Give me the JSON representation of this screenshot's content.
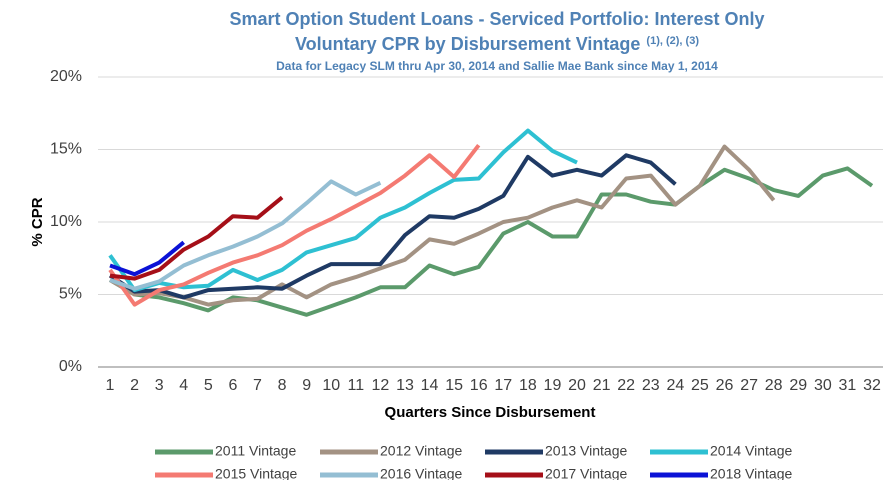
{
  "chart_data": {
    "type": "line",
    "title": "Smart Option Student Loans - Serviced Portfolio: Interest Only",
    "title_line2": "Voluntary CPR by Disbursement Vintage",
    "title_superscript": "(1), (2), (3)",
    "subtitle": "Data for Legacy SLM thru Apr 30, 2014 and Sallie Mae Bank since May 1, 2014",
    "y_label": "% CPR",
    "x_label": "Quarters Since Disbursement",
    "categories": [
      1,
      2,
      3,
      4,
      5,
      6,
      7,
      8,
      9,
      10,
      11,
      12,
      13,
      14,
      15,
      16,
      17,
      18,
      19,
      20,
      21,
      22,
      23,
      24,
      25,
      26,
      27,
      28,
      29,
      30,
      31,
      32
    ],
    "ylim": [
      0,
      20
    ],
    "yticks": [
      {
        "value": 0,
        "label": "0%"
      },
      {
        "value": 5,
        "label": "5%"
      },
      {
        "value": 10,
        "label": "10%"
      },
      {
        "value": 15,
        "label": "15%"
      },
      {
        "value": 20,
        "label": "20%"
      }
    ],
    "grid": true,
    "legend": "bottom",
    "series": [
      {
        "name": "2011 Vintage",
        "color": "#5b9a6b",
        "values": [
          6.0,
          5.0,
          4.8,
          4.4,
          3.9,
          4.8,
          4.6,
          4.1,
          3.6,
          4.2,
          4.8,
          5.5,
          5.5,
          7.0,
          6.4,
          6.9,
          9.2,
          10.0,
          9.0,
          9.0,
          11.9,
          11.9,
          11.4,
          11.2,
          12.5,
          13.6,
          13.0,
          12.2,
          11.8,
          13.2,
          13.7,
          12.5
        ]
      },
      {
        "name": "2012 Vintage",
        "color": "#a39283",
        "values": [
          6.0,
          5.0,
          5.1,
          4.8,
          4.3,
          4.6,
          4.7,
          5.7,
          4.8,
          5.7,
          6.2,
          6.8,
          7.4,
          8.8,
          8.5,
          9.2,
          10.0,
          10.3,
          11.0,
          11.5,
          11.0,
          13.0,
          13.2,
          11.2,
          12.5,
          15.2,
          13.6,
          11.5,
          null,
          null,
          null,
          null
        ]
      },
      {
        "name": "2013 Vintage",
        "color": "#1f3a64",
        "values": [
          6.3,
          5.2,
          5.3,
          4.8,
          5.3,
          5.4,
          5.5,
          5.4,
          6.3,
          7.1,
          7.1,
          7.1,
          9.1,
          10.4,
          10.3,
          10.9,
          11.8,
          14.5,
          13.2,
          13.6,
          13.2,
          14.6,
          14.1,
          12.6,
          null,
          null,
          null,
          null,
          null,
          null,
          null,
          null
        ]
      },
      {
        "name": "2014 Vintage",
        "color": "#2ec0d2",
        "values": [
          7.7,
          5.3,
          5.8,
          5.5,
          5.6,
          6.7,
          6.0,
          6.7,
          7.9,
          8.4,
          8.9,
          10.3,
          11.0,
          12.0,
          12.9,
          13.0,
          14.8,
          16.3,
          14.9,
          14.1,
          null,
          null,
          null,
          null,
          null,
          null,
          null,
          null,
          null,
          null,
          null,
          null
        ]
      },
      {
        "name": "2015 Vintage",
        "color": "#f47a72",
        "values": [
          6.7,
          4.3,
          5.3,
          5.7,
          6.5,
          7.2,
          7.7,
          8.4,
          9.4,
          10.2,
          11.1,
          12.0,
          13.2,
          14.6,
          13.1,
          15.3,
          null,
          null,
          null,
          null,
          null,
          null,
          null,
          null,
          null,
          null,
          null,
          null,
          null,
          null,
          null,
          null
        ]
      },
      {
        "name": "2016 Vintage",
        "color": "#94bed3",
        "values": [
          6.0,
          5.4,
          5.9,
          7.0,
          7.7,
          8.3,
          9.0,
          9.9,
          11.3,
          12.8,
          11.9,
          12.7,
          null,
          null,
          null,
          null,
          null,
          null,
          null,
          null,
          null,
          null,
          null,
          null,
          null,
          null,
          null,
          null,
          null,
          null,
          null,
          null
        ]
      },
      {
        "name": "2017 Vintage",
        "color": "#a50f18",
        "values": [
          6.3,
          6.1,
          6.7,
          8.1,
          9.0,
          10.4,
          10.3,
          11.7,
          null,
          null,
          null,
          null,
          null,
          null,
          null,
          null,
          null,
          null,
          null,
          null,
          null,
          null,
          null,
          null,
          null,
          null,
          null,
          null,
          null,
          null,
          null,
          null
        ]
      },
      {
        "name": "2018 Vintage",
        "color": "#0b12d6",
        "values": [
          7.0,
          6.4,
          7.2,
          8.6,
          null,
          null,
          null,
          null,
          null,
          null,
          null,
          null,
          null,
          null,
          null,
          null,
          null,
          null,
          null,
          null,
          null,
          null,
          null,
          null,
          null,
          null,
          null,
          null,
          null,
          null,
          null,
          null
        ]
      }
    ]
  }
}
